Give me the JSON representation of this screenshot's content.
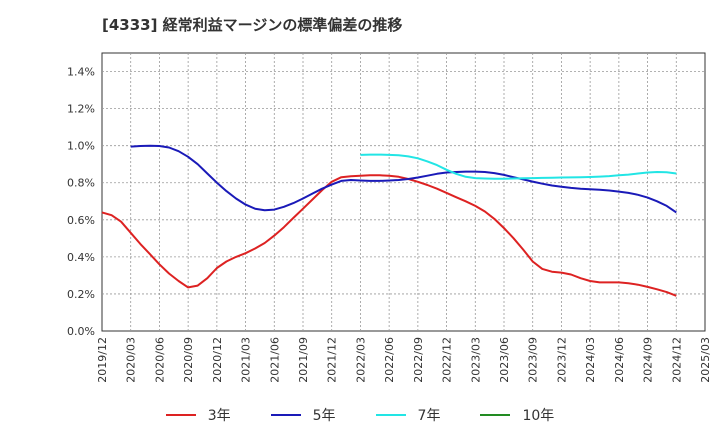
{
  "chart_data": {
    "type": "line",
    "title": "[4333]  経常利益マージンの標準偏差の推移",
    "xlabel": "",
    "ylabel": "",
    "ylim": [
      0,
      1.5
    ],
    "yticks": [
      "0.0%",
      "0.2%",
      "0.4%",
      "0.6%",
      "0.8%",
      "1.0%",
      "1.2%",
      "1.4%"
    ],
    "ytick_values": [
      0,
      0.2,
      0.4,
      0.6,
      0.8,
      1.0,
      1.2,
      1.4
    ],
    "xticks": [
      "2019/12",
      "2020/03",
      "2020/06",
      "2020/09",
      "2020/12",
      "2021/03",
      "2021/06",
      "2021/09",
      "2021/12",
      "2022/03",
      "2022/06",
      "2022/09",
      "2022/12",
      "2023/03",
      "2023/06",
      "2023/09",
      "2023/12",
      "2024/03",
      "2024/06",
      "2024/09",
      "2024/12",
      "2025/03"
    ],
    "grid": true,
    "legend_position": "bottom",
    "series": [
      {
        "name": "3年",
        "color": "#dd2222",
        "x": [
          "2019/12",
          "2020/01",
          "2020/02",
          "2020/03",
          "2020/04",
          "2020/05",
          "2020/06",
          "2020/07",
          "2020/08",
          "2020/09",
          "2020/10",
          "2020/11",
          "2020/12",
          "2021/01",
          "2021/02",
          "2021/03",
          "2021/04",
          "2021/05",
          "2021/06",
          "2021/07",
          "2021/08",
          "2021/09",
          "2021/10",
          "2021/11",
          "2021/12",
          "2022/01",
          "2022/02",
          "2022/03",
          "2022/04",
          "2022/05",
          "2022/06",
          "2022/07",
          "2022/08",
          "2022/09",
          "2022/10",
          "2022/11",
          "2022/12",
          "2023/01",
          "2023/02",
          "2023/03",
          "2023/04",
          "2023/05",
          "2023/06",
          "2023/07",
          "2023/08",
          "2023/09",
          "2023/10",
          "2023/11",
          "2023/12",
          "2024/01",
          "2024/02",
          "2024/03",
          "2024/04",
          "2024/05",
          "2024/06",
          "2024/07",
          "2024/08",
          "2024/09",
          "2024/10",
          "2024/11",
          "2024/12"
        ],
        "values": [
          0.64,
          0.625,
          0.59,
          0.53,
          0.47,
          0.415,
          0.36,
          0.31,
          0.27,
          0.235,
          0.245,
          0.285,
          0.34,
          0.375,
          0.4,
          0.42,
          0.445,
          0.475,
          0.515,
          0.56,
          0.61,
          0.66,
          0.71,
          0.76,
          0.805,
          0.83,
          0.835,
          0.838,
          0.84,
          0.84,
          0.838,
          0.832,
          0.82,
          0.805,
          0.788,
          0.768,
          0.745,
          0.722,
          0.7,
          0.675,
          0.645,
          0.605,
          0.555,
          0.5,
          0.44,
          0.375,
          0.335,
          0.32,
          0.315,
          0.305,
          0.285,
          0.27,
          0.262,
          0.262,
          0.262,
          0.258,
          0.25,
          0.238,
          0.225,
          0.21,
          0.19
        ]
      },
      {
        "name": "5年",
        "color": "#1a1ab8",
        "x": [
          "2020/03",
          "2020/04",
          "2020/05",
          "2020/06",
          "2020/07",
          "2020/08",
          "2020/09",
          "2020/10",
          "2020/11",
          "2020/12",
          "2021/01",
          "2021/02",
          "2021/03",
          "2021/04",
          "2021/05",
          "2021/06",
          "2021/07",
          "2021/08",
          "2021/09",
          "2021/10",
          "2021/11",
          "2021/12",
          "2022/01",
          "2022/02",
          "2022/03",
          "2022/04",
          "2022/05",
          "2022/06",
          "2022/07",
          "2022/08",
          "2022/09",
          "2022/10",
          "2022/11",
          "2022/12",
          "2023/01",
          "2023/02",
          "2023/03",
          "2023/04",
          "2023/05",
          "2023/06",
          "2023/07",
          "2023/08",
          "2023/09",
          "2023/10",
          "2023/11",
          "2023/12",
          "2024/01",
          "2024/02",
          "2024/03",
          "2024/04",
          "2024/05",
          "2024/06",
          "2024/07",
          "2024/08",
          "2024/09",
          "2024/10",
          "2024/11",
          "2024/12"
        ],
        "values": [
          0.995,
          0.998,
          1.0,
          0.998,
          0.99,
          0.97,
          0.94,
          0.9,
          0.85,
          0.8,
          0.755,
          0.715,
          0.682,
          0.66,
          0.652,
          0.655,
          0.67,
          0.69,
          0.715,
          0.742,
          0.768,
          0.79,
          0.81,
          0.815,
          0.812,
          0.81,
          0.81,
          0.812,
          0.815,
          0.82,
          0.828,
          0.838,
          0.848,
          0.855,
          0.858,
          0.86,
          0.86,
          0.858,
          0.852,
          0.842,
          0.83,
          0.818,
          0.806,
          0.795,
          0.785,
          0.778,
          0.772,
          0.768,
          0.765,
          0.762,
          0.758,
          0.752,
          0.745,
          0.735,
          0.72,
          0.7,
          0.675,
          0.64
        ]
      },
      {
        "name": "7年",
        "color": "#22e5e5",
        "x": [
          "2022/03",
          "2022/04",
          "2022/05",
          "2022/06",
          "2022/07",
          "2022/08",
          "2022/09",
          "2022/10",
          "2022/11",
          "2022/12",
          "2023/01",
          "2023/02",
          "2023/03",
          "2023/04",
          "2023/05",
          "2023/06",
          "2023/07",
          "2023/08",
          "2023/09",
          "2023/10",
          "2023/11",
          "2023/12",
          "2024/01",
          "2024/02",
          "2024/03",
          "2024/04",
          "2024/05",
          "2024/06",
          "2024/07",
          "2024/08",
          "2024/09",
          "2024/10",
          "2024/11",
          "2024/12"
        ],
        "values": [
          0.95,
          0.952,
          0.952,
          0.95,
          0.948,
          0.942,
          0.932,
          0.915,
          0.895,
          0.87,
          0.848,
          0.832,
          0.825,
          0.823,
          0.822,
          0.822,
          0.823,
          0.824,
          0.825,
          0.826,
          0.827,
          0.828,
          0.829,
          0.83,
          0.831,
          0.833,
          0.836,
          0.84,
          0.844,
          0.85,
          0.855,
          0.858,
          0.857,
          0.85
        ]
      },
      {
        "name": "10年",
        "color": "#228b22",
        "x": [],
        "values": []
      }
    ]
  }
}
